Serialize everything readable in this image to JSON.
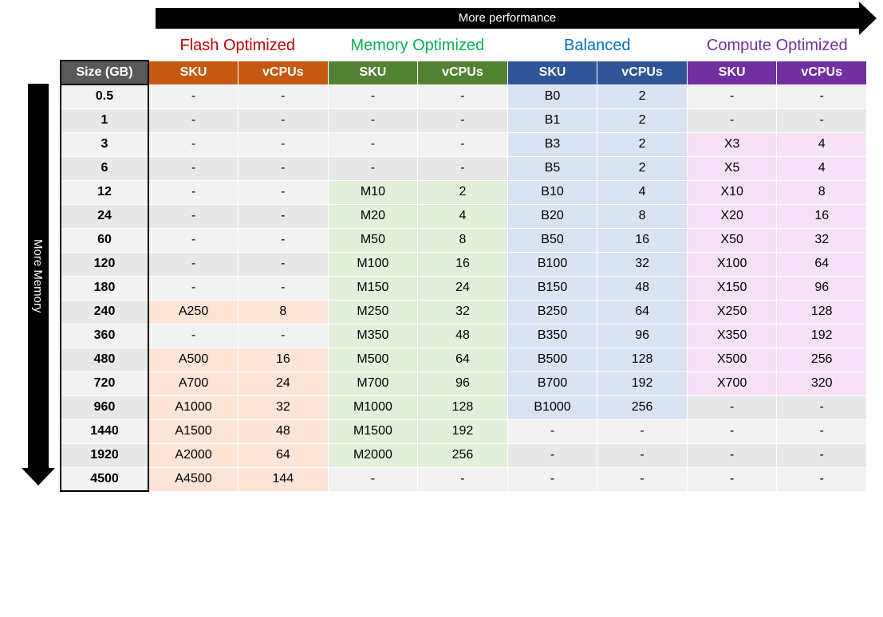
{
  "axis_labels": {
    "horizontal": "More performance",
    "vertical": "More Memory"
  },
  "size_header": "Size (GB)",
  "sub_headers": [
    "SKU",
    "vCPUs"
  ],
  "tiers": [
    {
      "name": "Flash Optimized",
      "title_color": "#c00000",
      "header_bg": "#c65911",
      "fill_bg": "#fce4d6"
    },
    {
      "name": "Memory Optimized",
      "title_color": "#00b050",
      "header_bg": "#548235",
      "fill_bg": "#e2efda"
    },
    {
      "name": "Balanced",
      "title_color": "#0070c0",
      "header_bg": "#2f5597",
      "fill_bg": "#dae3f3"
    },
    {
      "name": "Compute Optimized",
      "title_color": "#7030a0",
      "header_bg": "#7030a0",
      "fill_bg": "#f7e1f7"
    }
  ],
  "sizes": [
    "0.5",
    "1",
    "3",
    "6",
    "12",
    "24",
    "60",
    "120",
    "180",
    "240",
    "360",
    "480",
    "720",
    "960",
    "1440",
    "1920",
    "4500"
  ],
  "rows": [
    {
      "flash": null,
      "memory": null,
      "balanced": {
        "sku": "B0",
        "vcpu": "2"
      },
      "compute": null
    },
    {
      "flash": null,
      "memory": null,
      "balanced": {
        "sku": "B1",
        "vcpu": "2"
      },
      "compute": null
    },
    {
      "flash": null,
      "memory": null,
      "balanced": {
        "sku": "B3",
        "vcpu": "2"
      },
      "compute": {
        "sku": "X3",
        "vcpu": "4"
      }
    },
    {
      "flash": null,
      "memory": null,
      "balanced": {
        "sku": "B5",
        "vcpu": "2"
      },
      "compute": {
        "sku": "X5",
        "vcpu": "4"
      }
    },
    {
      "flash": null,
      "memory": {
        "sku": "M10",
        "vcpu": "2"
      },
      "balanced": {
        "sku": "B10",
        "vcpu": "4"
      },
      "compute": {
        "sku": "X10",
        "vcpu": "8"
      }
    },
    {
      "flash": null,
      "memory": {
        "sku": "M20",
        "vcpu": "4"
      },
      "balanced": {
        "sku": "B20",
        "vcpu": "8"
      },
      "compute": {
        "sku": "X20",
        "vcpu": "16"
      }
    },
    {
      "flash": null,
      "memory": {
        "sku": "M50",
        "vcpu": "8"
      },
      "balanced": {
        "sku": "B50",
        "vcpu": "16"
      },
      "compute": {
        "sku": "X50",
        "vcpu": "32"
      }
    },
    {
      "flash": null,
      "memory": {
        "sku": "M100",
        "vcpu": "16"
      },
      "balanced": {
        "sku": "B100",
        "vcpu": "32"
      },
      "compute": {
        "sku": "X100",
        "vcpu": "64"
      }
    },
    {
      "flash": null,
      "memory": {
        "sku": "M150",
        "vcpu": "24"
      },
      "balanced": {
        "sku": "B150",
        "vcpu": "48"
      },
      "compute": {
        "sku": "X150",
        "vcpu": "96"
      }
    },
    {
      "flash": {
        "sku": "A250",
        "vcpu": "8"
      },
      "memory": {
        "sku": "M250",
        "vcpu": "32"
      },
      "balanced": {
        "sku": "B250",
        "vcpu": "64"
      },
      "compute": {
        "sku": "X250",
        "vcpu": "128"
      }
    },
    {
      "flash": null,
      "memory": {
        "sku": "M350",
        "vcpu": "48"
      },
      "balanced": {
        "sku": "B350",
        "vcpu": "96"
      },
      "compute": {
        "sku": "X350",
        "vcpu": "192"
      }
    },
    {
      "flash": {
        "sku": "A500",
        "vcpu": "16"
      },
      "memory": {
        "sku": "M500",
        "vcpu": "64"
      },
      "balanced": {
        "sku": "B500",
        "vcpu": "128"
      },
      "compute": {
        "sku": "X500",
        "vcpu": "256"
      }
    },
    {
      "flash": {
        "sku": "A700",
        "vcpu": "24"
      },
      "memory": {
        "sku": "M700",
        "vcpu": "96"
      },
      "balanced": {
        "sku": "B700",
        "vcpu": "192"
      },
      "compute": {
        "sku": "X700",
        "vcpu": "320"
      }
    },
    {
      "flash": {
        "sku": "A1000",
        "vcpu": "32"
      },
      "memory": {
        "sku": "M1000",
        "vcpu": "128"
      },
      "balanced": {
        "sku": "B1000",
        "vcpu": "256"
      },
      "compute": null
    },
    {
      "flash": {
        "sku": "A1500",
        "vcpu": "48"
      },
      "memory": {
        "sku": "M1500",
        "vcpu": "192"
      },
      "balanced": null,
      "compute": null
    },
    {
      "flash": {
        "sku": "A2000",
        "vcpu": "64"
      },
      "memory": {
        "sku": "M2000",
        "vcpu": "256"
      },
      "balanced": null,
      "compute": null
    },
    {
      "flash": {
        "sku": "A4500",
        "vcpu": "144"
      },
      "memory": null,
      "balanced": null,
      "compute": null
    }
  ],
  "empty_placeholder": "-",
  "colors": {
    "size_header_bg": "#595959",
    "row_odd": "#f2f2f2",
    "row_even": "#e8e8e8",
    "border": "#ffffff",
    "axis_bg": "#000000",
    "axis_text": "#ffffff"
  },
  "font": {
    "tier_title_size": 20,
    "cell_size": 16
  }
}
